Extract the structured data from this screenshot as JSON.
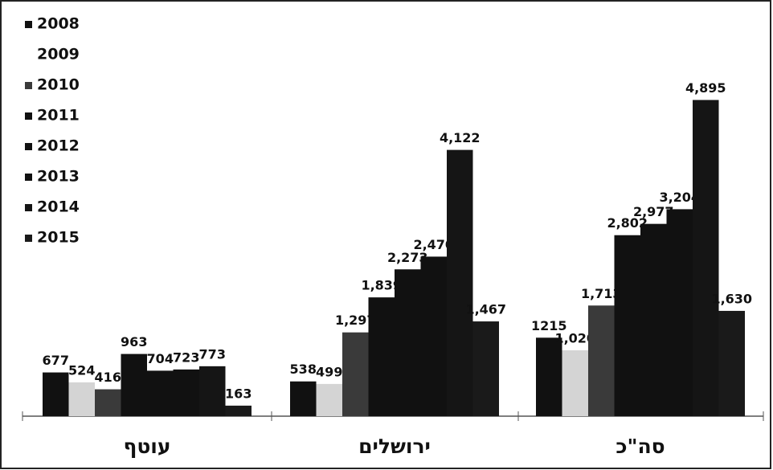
{
  "chart_data": {
    "type": "bar",
    "categories": [
      "עוטף",
      "ירושלים",
      "סה\"כ"
    ],
    "series": [
      {
        "name": "2008",
        "color": "#111111",
        "values": [
          677,
          538,
          1215
        ],
        "value_labels": [
          "677",
          "538",
          "1215"
        ]
      },
      {
        "name": "2009",
        "color": "#d4d4d4",
        "values": [
          524,
          499,
          1020
        ],
        "value_labels": [
          "524",
          "499",
          "1,020"
        ]
      },
      {
        "name": "2010",
        "color": "#3a3a3a",
        "values": [
          416,
          1297,
          1713
        ],
        "value_labels": [
          "416",
          "1,297",
          "1,713"
        ]
      },
      {
        "name": "2011",
        "color": "#111111",
        "values": [
          963,
          1839,
          2802
        ],
        "value_labels": [
          "963",
          "1,839",
          "2,802"
        ]
      },
      {
        "name": "2012",
        "color": "#111111",
        "values": [
          704,
          2273,
          2977
        ],
        "value_labels": [
          "704",
          "2,273",
          "2,977"
        ]
      },
      {
        "name": "2013",
        "color": "#111111",
        "values": [
          723,
          2470,
          3204
        ],
        "value_labels": [
          "723",
          "2,470",
          "3,204"
        ]
      },
      {
        "name": "2014",
        "color": "#151515",
        "values": [
          773,
          4122,
          4895
        ],
        "value_labels": [
          "773",
          "4,122",
          "4,895"
        ]
      },
      {
        "name": "2015",
        "color": "#1a1a1a",
        "values": [
          163,
          1467,
          1630
        ],
        "value_labels": [
          "163",
          "1,467",
          "1,630"
        ]
      }
    ],
    "ylim": [
      0,
      5000
    ]
  }
}
